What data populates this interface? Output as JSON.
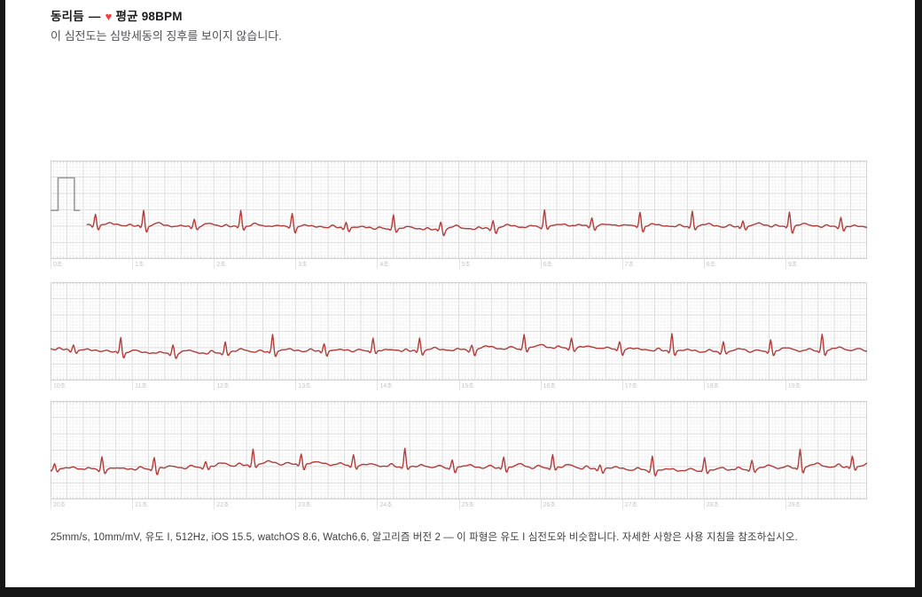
{
  "header": {
    "classification": "동리듬",
    "dash": "—",
    "heart_glyph": "♥",
    "average_bpm_label": "평균 98BPM",
    "result_text": "이 심전도는 심방세동의 징후를 보이지 않습니다."
  },
  "footer": {
    "details": "25mm/s, 10mm/mV, 유도 I, 512Hz, iOS 15.5, watchOS 8.6, Watch6,6, 알고리즘 버전 2 — 이 파형은 유도 I 심전도와 비슷합니다. 자세한 사항은 사용 지침을 참조하십시오."
  },
  "chart_data": {
    "type": "line",
    "title": "동리듬 — 평균 98BPM",
    "average_bpm": 98,
    "lead": "유도 I",
    "sample_rate_hz": 512,
    "paper_speed": "25mm/s",
    "gain": "10mm/mV",
    "duration_sec": 30,
    "strip_duration_sec": 10,
    "x_unit": "초",
    "grid": true,
    "strips": [
      {
        "t_start": 0,
        "t_end": 10,
        "has_cal_pulse": true,
        "tick_labels": [
          "0초",
          "1초",
          "2초",
          "3초",
          "4초",
          "5초",
          "6초",
          "7초",
          "8초",
          "9초"
        ]
      },
      {
        "t_start": 10,
        "t_end": 20,
        "has_cal_pulse": false,
        "tick_labels": [
          "10초",
          "11초",
          "12초",
          "13초",
          "14초",
          "15초",
          "16초",
          "17초",
          "18초",
          "19초"
        ]
      },
      {
        "t_start": 20,
        "t_end": 30,
        "has_cal_pulse": false,
        "tick_labels": [
          "20초",
          "21초",
          "22초",
          "23초",
          "24초",
          "25초",
          "26초",
          "27초",
          "28초",
          "29초"
        ]
      }
    ],
    "r_peaks_sec": [
      0.55,
      1.14,
      1.76,
      2.33,
      2.96,
      3.62,
      4.2,
      4.78,
      5.42,
      6.05,
      6.63,
      7.22,
      7.86,
      8.48,
      9.05,
      9.68,
      10.28,
      10.86,
      11.5,
      12.14,
      12.72,
      13.35,
      13.95,
      14.52,
      15.16,
      15.8,
      16.38,
      16.97,
      17.61,
      18.24,
      18.82,
      19.45,
      20.05,
      20.63,
      21.27,
      21.9,
      22.48,
      23.07,
      23.71,
      24.34,
      24.92,
      25.55,
      26.15,
      26.73,
      27.37,
      28.01,
      28.59,
      29.18,
      29.82
    ],
    "r_amplitude_mv": 0.45,
    "cal_pulse": {
      "amplitude_mv": 1.0,
      "width_sec": 0.2
    },
    "colors": {
      "trace": "#b13c3a",
      "cal_pulse": "#9a9a9a",
      "grid_minor": "#f2f2f2",
      "grid_major": "#dddddd",
      "grid_border": "#d2d2d2",
      "edge_ticks": "#c6c6c6",
      "tick_label": "#c6c6c6",
      "heart": "#fb3c34",
      "title_text": "#1c1c1e",
      "subtitle_text": "#515154",
      "footer_text": "#3f3f41"
    }
  }
}
